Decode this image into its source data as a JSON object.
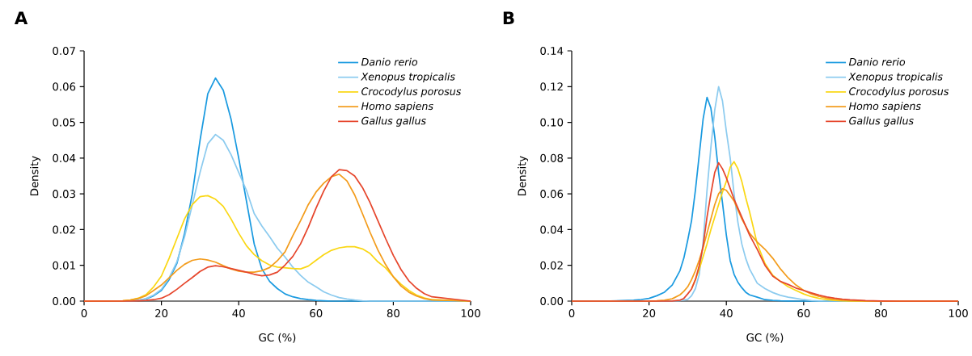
{
  "chart_data": [
    {
      "type": "line",
      "title": "A",
      "xlabel": "GC (%)",
      "ylabel": "Density",
      "legend": "top right",
      "xlim": [
        0,
        100
      ],
      "xticks": [
        0,
        20,
        40,
        60,
        80,
        100
      ],
      "ylim": [
        0,
        0.07
      ],
      "yticks": [
        {
          "value": 0,
          "label": "0.00"
        },
        {
          "value": 0.01,
          "label": "0.01"
        },
        {
          "value": 0.02,
          "label": "0.02"
        },
        {
          "value": 0.03,
          "label": "0.03"
        },
        {
          "value": 0.04,
          "label": "0.04"
        },
        {
          "value": 0.05,
          "label": "0.05"
        },
        {
          "value": 0.06,
          "label": "0.06"
        },
        {
          "value": 0.07,
          "label": "0.07"
        }
      ],
      "series": [
        {
          "name": "Danio rerio",
          "color": "#1a9ae0",
          "x": [
            0,
            10,
            14,
            16,
            18,
            20,
            22,
            24,
            26,
            28,
            30,
            32,
            34,
            36,
            38,
            40,
            42,
            44,
            46,
            48,
            50,
            52,
            54,
            56,
            58,
            60,
            62,
            64,
            100
          ],
          "values": [
            0,
            0,
            0.0002,
            0.0006,
            0.0015,
            0.003,
            0.006,
            0.0105,
            0.019,
            0.03,
            0.045,
            0.058,
            0.0624,
            0.059,
            0.051,
            0.04,
            0.028,
            0.016,
            0.009,
            0.0055,
            0.0035,
            0.002,
            0.0012,
            0.0007,
            0.0004,
            0.0002,
            0.0001,
            0,
            0
          ]
        },
        {
          "name": "Xenopus tropicalis",
          "color": "#8ccbef",
          "x": [
            0,
            12,
            14,
            16,
            18,
            20,
            22,
            24,
            26,
            28,
            30,
            32,
            34,
            36,
            38,
            40,
            42,
            44,
            46,
            48,
            50,
            52,
            54,
            56,
            58,
            60,
            62,
            64,
            66,
            68,
            70,
            72,
            74,
            100
          ],
          "values": [
            0,
            0,
            0.0002,
            0.0007,
            0.0017,
            0.0033,
            0.0065,
            0.011,
            0.018,
            0.027,
            0.036,
            0.044,
            0.0466,
            0.045,
            0.041,
            0.036,
            0.031,
            0.0245,
            0.021,
            0.018,
            0.0148,
            0.0123,
            0.0095,
            0.0072,
            0.0053,
            0.004,
            0.0026,
            0.0017,
            0.001,
            0.0006,
            0.0003,
            0.0001,
            0,
            0
          ]
        },
        {
          "name": "Crocodylus porosus",
          "color": "#fad714",
          "x": [
            0,
            10,
            12,
            14,
            16,
            18,
            20,
            22,
            24,
            26,
            28,
            30,
            32,
            34,
            36,
            38,
            40,
            42,
            44,
            46,
            48,
            50,
            52,
            54,
            56,
            58,
            60,
            62,
            64,
            66,
            68,
            70,
            72,
            74,
            76,
            78,
            80,
            82,
            84,
            86,
            88,
            90,
            100
          ],
          "values": [
            0,
            0.0001,
            0.0003,
            0.0008,
            0.0018,
            0.004,
            0.007,
            0.012,
            0.0175,
            0.023,
            0.027,
            0.0292,
            0.0295,
            0.0285,
            0.0265,
            0.023,
            0.019,
            0.0155,
            0.013,
            0.0113,
            0.0101,
            0.0095,
            0.0093,
            0.0091,
            0.009,
            0.0098,
            0.0114,
            0.013,
            0.0142,
            0.0149,
            0.0152,
            0.0152,
            0.0146,
            0.0133,
            0.011,
            0.0093,
            0.0068,
            0.0047,
            0.003,
            0.0017,
            0.0009,
            0.0004,
            0
          ]
        },
        {
          "name": "Homo sapiens",
          "color": "#f39c1c",
          "x": [
            0,
            10,
            12,
            14,
            16,
            18,
            20,
            22,
            24,
            26,
            28,
            30,
            32,
            34,
            36,
            38,
            40,
            42,
            44,
            46,
            48,
            50,
            52,
            54,
            56,
            58,
            60,
            62,
            64,
            66,
            68,
            70,
            72,
            74,
            76,
            78,
            80,
            82,
            84,
            86,
            88,
            90,
            100
          ],
          "values": [
            0,
            0.0001,
            0.0003,
            0.0007,
            0.0015,
            0.003,
            0.0045,
            0.0065,
            0.0086,
            0.0103,
            0.0114,
            0.0118,
            0.0115,
            0.0109,
            0.0099,
            0.009,
            0.0084,
            0.0081,
            0.0081,
            0.0085,
            0.0094,
            0.0113,
            0.0138,
            0.0183,
            0.0225,
            0.027,
            0.0305,
            0.033,
            0.0348,
            0.0355,
            0.0336,
            0.0297,
            0.0245,
            0.0192,
            0.0143,
            0.0102,
            0.0068,
            0.0042,
            0.0025,
            0.0014,
            0.0007,
            0.0003,
            0
          ]
        },
        {
          "name": "Gallus gallus",
          "color": "#e6462c",
          "x": [
            0,
            12,
            14,
            16,
            18,
            20,
            22,
            24,
            26,
            28,
            30,
            32,
            34,
            36,
            38,
            40,
            42,
            44,
            46,
            48,
            50,
            52,
            54,
            56,
            58,
            60,
            62,
            64,
            66,
            68,
            70,
            72,
            74,
            76,
            78,
            80,
            82,
            84,
            86,
            88,
            90,
            100
          ],
          "values": [
            0,
            0,
            0.0001,
            0.0002,
            0.0004,
            0.0008,
            0.0018,
            0.0033,
            0.005,
            0.0066,
            0.0083,
            0.0095,
            0.0099,
            0.0096,
            0.0091,
            0.0086,
            0.0081,
            0.0075,
            0.0071,
            0.0073,
            0.0081,
            0.0101,
            0.0125,
            0.016,
            0.0207,
            0.026,
            0.0308,
            0.0348,
            0.0368,
            0.0365,
            0.035,
            0.0318,
            0.0275,
            0.0225,
            0.0175,
            0.0128,
            0.0088,
            0.0057,
            0.0036,
            0.0021,
            0.0012,
            0
          ]
        }
      ]
    },
    {
      "type": "line",
      "title": "B",
      "xlabel": "GC (%)",
      "ylabel": "Density",
      "legend": "top right",
      "xlim": [
        0,
        100
      ],
      "xticks": [
        0,
        20,
        40,
        60,
        80,
        100
      ],
      "ylim": [
        0,
        0.14
      ],
      "yticks": [
        {
          "value": 0,
          "label": "0.00"
        },
        {
          "value": 0.02,
          "label": "0.02"
        },
        {
          "value": 0.04,
          "label": "0.04"
        },
        {
          "value": 0.06,
          "label": "0.06"
        },
        {
          "value": 0.08,
          "label": "0.08"
        },
        {
          "value": 0.1,
          "label": "0.10"
        },
        {
          "value": 0.12,
          "label": "0.12"
        },
        {
          "value": 0.14,
          "label": "0.14"
        }
      ],
      "series": [
        {
          "name": "Danio rerio",
          "color": "#1a9ae0",
          "x": [
            0,
            10,
            16,
            18,
            20,
            22,
            24,
            26,
            28,
            29,
            30,
            31,
            32,
            33,
            34,
            35,
            36,
            37,
            38,
            39,
            40,
            41,
            42,
            43,
            44,
            45,
            46,
            48,
            50,
            52,
            54,
            56,
            58,
            100
          ],
          "values": [
            0,
            0.0001,
            0.0005,
            0.0009,
            0.0015,
            0.003,
            0.005,
            0.009,
            0.017,
            0.024,
            0.034,
            0.045,
            0.062,
            0.082,
            0.102,
            0.114,
            0.108,
            0.092,
            0.072,
            0.055,
            0.037,
            0.0226,
            0.015,
            0.0105,
            0.0075,
            0.005,
            0.0035,
            0.0022,
            0.0008,
            0.0004,
            0.0002,
            0.0001,
            0,
            0
          ]
        },
        {
          "name": "Xenopus tropicalis",
          "color": "#8ccbef",
          "x": [
            0,
            24,
            26,
            28,
            29,
            30,
            31,
            32,
            33,
            34,
            35,
            36,
            37,
            38,
            39,
            40,
            41,
            42,
            43,
            44,
            45,
            46,
            48,
            50,
            52,
            54,
            56,
            58,
            60,
            62,
            64,
            66,
            100
          ],
          "values": [
            0,
            0,
            0.0001,
            0.0003,
            0.0006,
            0.001,
            0.003,
            0.007,
            0.015,
            0.033,
            0.062,
            0.086,
            0.107,
            0.12,
            0.112,
            0.095,
            0.08,
            0.06,
            0.044,
            0.032,
            0.024,
            0.018,
            0.01,
            0.007,
            0.0048,
            0.0032,
            0.0022,
            0.0015,
            0.0008,
            0.0003,
            0.0001,
            0,
            0
          ]
        },
        {
          "name": "Crocodylus porosus",
          "color": "#fad714",
          "x": [
            31,
            32,
            33,
            34,
            35,
            36,
            37,
            38,
            39,
            40,
            41,
            42,
            43,
            44,
            45,
            46,
            48,
            50,
            52,
            54,
            56,
            58,
            60,
            62,
            64,
            66,
            68,
            70,
            72,
            74,
            100
          ],
          "values": [
            0.007,
            0.012,
            0.018,
            0.025,
            0.032,
            0.04,
            0.047,
            0.054,
            0.061,
            0.067,
            0.075,
            0.078,
            0.074,
            0.067,
            0.058,
            0.05,
            0.032,
            0.021,
            0.0145,
            0.011,
            0.008,
            0.006,
            0.004,
            0.0025,
            0.0015,
            0.0008,
            0.0004,
            0.0002,
            0.0001,
            0,
            0
          ]
        },
        {
          "name": "Homo sapiens",
          "color": "#f39c1c",
          "x": [
            0,
            20,
            22,
            24,
            26,
            28,
            29,
            30,
            31,
            32,
            33,
            34,
            35,
            36,
            37,
            38,
            39,
            40,
            41,
            42,
            43,
            44,
            45,
            46,
            48,
            50,
            52,
            54,
            56,
            58,
            60,
            62,
            64,
            66,
            68,
            70,
            72,
            74,
            76,
            80,
            100
          ],
          "values": [
            0,
            0,
            0.0002,
            0.0005,
            0.0013,
            0.0035,
            0.0055,
            0.008,
            0.012,
            0.017,
            0.023,
            0.03,
            0.038,
            0.046,
            0.054,
            0.06,
            0.0629,
            0.062,
            0.059,
            0.056,
            0.051,
            0.046,
            0.042,
            0.038,
            0.033,
            0.029,
            0.024,
            0.018,
            0.013,
            0.009,
            0.006,
            0.004,
            0.0026,
            0.0016,
            0.001,
            0.0005,
            0.0003,
            0.0002,
            0.0001,
            0,
            0
          ]
        },
        {
          "name": "Gallus gallus",
          "color": "#e6462c",
          "x": [
            0,
            24,
            26,
            28,
            29,
            30,
            31,
            32,
            33,
            34,
            35,
            36,
            37,
            38,
            39,
            40,
            41,
            42,
            43,
            44,
            45,
            46,
            48,
            50,
            52,
            54,
            56,
            58,
            60,
            62,
            64,
            66,
            68,
            70,
            72,
            74,
            76,
            80,
            85,
            100
          ],
          "values": [
            0,
            0,
            0.0001,
            0.0005,
            0.0015,
            0.004,
            0.0068,
            0.012,
            0.02,
            0.031,
            0.047,
            0.06,
            0.072,
            0.0774,
            0.074,
            0.069,
            0.063,
            0.057,
            0.052,
            0.047,
            0.042,
            0.037,
            0.029,
            0.02,
            0.014,
            0.011,
            0.0093,
            0.0073,
            0.006,
            0.0046,
            0.0033,
            0.0023,
            0.0016,
            0.0011,
            0.0007,
            0.0005,
            0.0003,
            0.0001,
            0,
            0
          ]
        }
      ]
    }
  ]
}
